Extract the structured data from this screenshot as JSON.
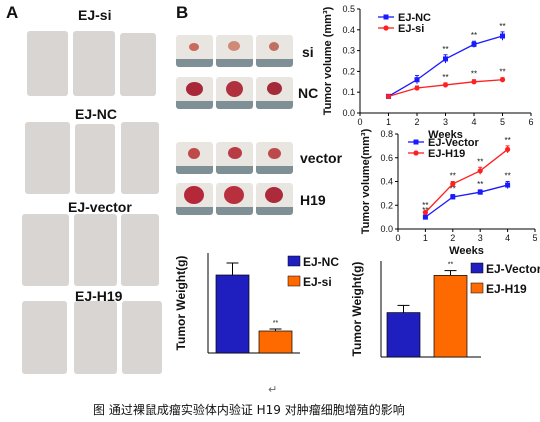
{
  "panel_a": {
    "letter": "A",
    "groups": [
      {
        "label": "EJ-si"
      },
      {
        "label": "EJ-NC"
      },
      {
        "label": "EJ-vector"
      },
      {
        "label": "EJ-H19"
      }
    ]
  },
  "panel_b": {
    "letter": "B",
    "tumor_rows": [
      "si",
      "NC",
      "vector",
      "H19"
    ]
  },
  "chart_data": [
    {
      "type": "line",
      "ylabel": "Tumor volume (mm³)",
      "xlabel": "Weeks",
      "x": [
        1,
        2,
        3,
        4,
        5
      ],
      "xlim": [
        0,
        6
      ],
      "ylim": [
        0,
        0.5
      ],
      "xticks": [
        0,
        1,
        2,
        3,
        4,
        5,
        6
      ],
      "yticks": [
        0.0,
        0.1,
        0.2,
        0.3,
        0.4,
        0.5
      ],
      "legend_position": "top-left",
      "series": [
        {
          "name": "EJ-NC",
          "color": "#1a1aff",
          "values": [
            0.08,
            0.16,
            0.26,
            0.33,
            0.37
          ],
          "errors": [
            0.005,
            0.02,
            0.02,
            0.015,
            0.02
          ],
          "annotations": [
            "",
            "",
            "**",
            "**",
            "**"
          ]
        },
        {
          "name": "EJ-si",
          "color": "#ff2020",
          "values": [
            0.08,
            0.12,
            0.135,
            0.15,
            0.16
          ],
          "errors": [
            0.005,
            0.01,
            0.01,
            0.01,
            0.01
          ],
          "annotations": [
            "",
            "",
            "**",
            "**",
            "**"
          ]
        }
      ]
    },
    {
      "type": "line",
      "ylabel": "Tumor volume(mm³)",
      "xlabel": "Weeks",
      "x": [
        1,
        2,
        3,
        4
      ],
      "xlim": [
        0,
        5
      ],
      "ylim": [
        0,
        0.8
      ],
      "xticks": [
        0,
        1,
        2,
        3,
        4,
        5
      ],
      "yticks": [
        0.0,
        0.2,
        0.4,
        0.6,
        0.8
      ],
      "legend_position": "top-left",
      "series": [
        {
          "name": "EJ-Vector",
          "color": "#1a1aff",
          "values": [
            0.1,
            0.27,
            0.31,
            0.37
          ],
          "errors": [
            0.01,
            0.02,
            0.02,
            0.03
          ],
          "annotations": [
            "**",
            "**",
            "**",
            "**"
          ]
        },
        {
          "name": "EJ-H19",
          "color": "#ff2020",
          "values": [
            0.14,
            0.38,
            0.49,
            0.67
          ],
          "errors": [
            0.01,
            0.02,
            0.03,
            0.03
          ],
          "annotations": [
            "**",
            "**",
            "**",
            "**"
          ]
        }
      ]
    },
    {
      "type": "bar",
      "ylabel": "Tumor Weight(g)",
      "categories": [
        "EJ-NC",
        "EJ-si"
      ],
      "values": [
        0.39,
        0.11
      ],
      "errors": [
        0.06,
        0.01
      ],
      "colors": [
        "#1f1fc0",
        "#ff6a00"
      ],
      "annotations": [
        "",
        "**"
      ],
      "ylim": [
        0,
        0.5
      ],
      "legend_position": "right"
    },
    {
      "type": "bar",
      "ylabel": "Tumor Weight(g)",
      "categories": [
        "EJ-Vector",
        "EJ-H19"
      ],
      "values": [
        0.37,
        0.68
      ],
      "errors": [
        0.06,
        0.04
      ],
      "colors": [
        "#1f1fc0",
        "#ff6a00"
      ],
      "annotations": [
        "",
        "**"
      ],
      "ylim": [
        0,
        0.8
      ],
      "legend_position": "right"
    }
  ],
  "return_mark": "↵",
  "caption": "图  通过裸鼠成瘤实验体内验证 H19 对肿瘤细胞增殖的影响"
}
